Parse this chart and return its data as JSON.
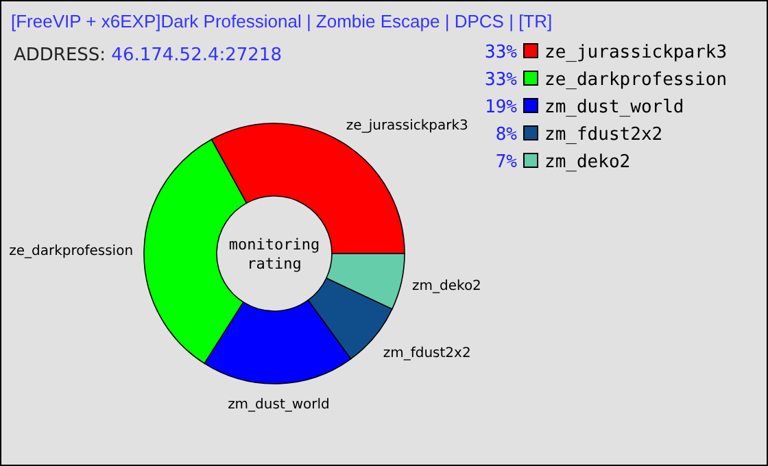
{
  "chart_data": {
    "type": "donut",
    "title": "[FreeVIP + x6EXP]Dark Professional | Zombie Escape | DPCS | [TR]",
    "subtitle": "ADDRESS: 46.174.52.4:27218",
    "categories": [
      "ze_jurassickpark3",
      "ze_darkprofession",
      "zm_dust_world",
      "zm_fdust2x2",
      "zm_deko2"
    ],
    "values": [
      33,
      33,
      19,
      8,
      7
    ],
    "colors": [
      "#ff0000",
      "#00ff00",
      "#0000ff",
      "#104e8b",
      "#66cdaa"
    ],
    "value_labels": [
      "33%",
      "33%",
      "19%",
      "8%",
      "7%"
    ],
    "legend": "top right",
    "annotations": [
      "monitoring rating"
    ]
  }
}
